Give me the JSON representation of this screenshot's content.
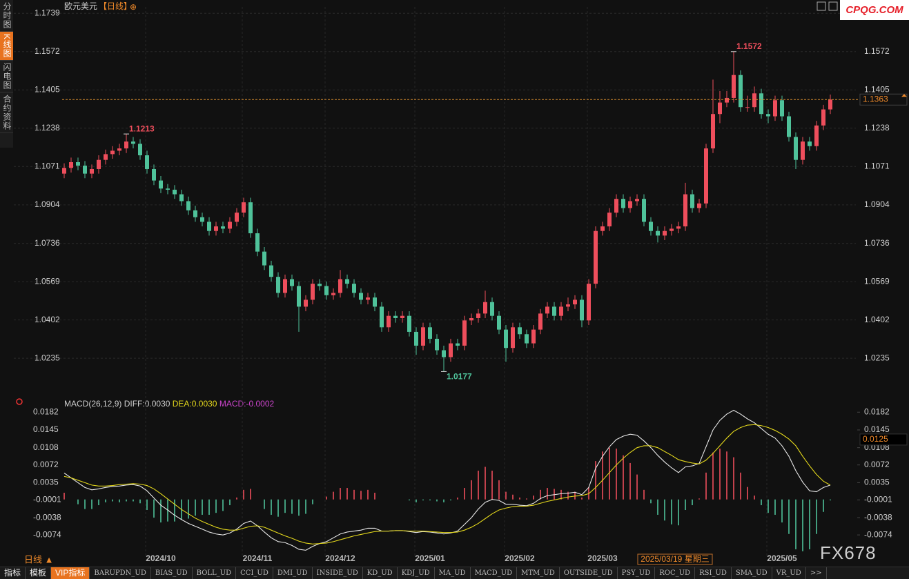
{
  "header": {
    "symbol": "欧元美元",
    "period": "【日线】",
    "icon": "⊕"
  },
  "sidebar": [
    "分时图",
    "K线图",
    "闪电图",
    "合约资料"
  ],
  "logo": "CPQG.COM",
  "watermark": "FX678",
  "period_button": "日线 ▲",
  "crosshair_date": "2025/03/19 星期三",
  "toolbar": [
    "指标",
    "模板",
    "VIP指标",
    "BARUPDN_UD",
    "BIAS_UD",
    "BOLL_UD",
    "CCI_UD",
    "DMI_UD",
    "INSIDE_UD",
    "KD_UD",
    "KDJ_UD",
    "MA_UD",
    "MACD_UD",
    "MTM_UD",
    "OUTSIDE_UD",
    "PSY_UD",
    "ROC_UD",
    "RSI_UD",
    "SMA_UD",
    "VR_UD",
    ">>"
  ],
  "chart_data": [
    {
      "type": "candlestick",
      "up_color": "#ee4e5c",
      "down_color": "#4fc29a",
      "grid": true,
      "ylim": [
        1.0082,
        1.1767
      ],
      "yticks": [
        1.0235,
        1.0402,
        1.0569,
        1.0736,
        1.0904,
        1.1071,
        1.1238,
        1.1405,
        1.1572,
        1.1739
      ],
      "xticks": [
        {
          "value": 14,
          "label": "2024/10"
        },
        {
          "value": 28,
          "label": "2024/11"
        },
        {
          "value": 40,
          "label": "2024/12"
        },
        {
          "value": 53,
          "label": "2025/01"
        },
        {
          "value": 66,
          "label": "2025/02"
        },
        {
          "value": 78,
          "label": "2025/03"
        },
        {
          "value": 104,
          "label": "2025/05"
        }
      ],
      "annotations": [
        1.1213,
        1.1572,
        1.0177
      ],
      "current_price": 1.1363,
      "open": [
        1.104,
        1.1065,
        1.109,
        1.1075,
        1.104,
        1.106,
        1.11,
        1.1125,
        1.114,
        1.115,
        1.118,
        1.117,
        1.112,
        1.106,
        1.101,
        1.0975,
        1.097,
        1.095,
        1.092,
        1.088,
        1.085,
        1.083,
        1.079,
        1.081,
        1.08,
        1.083,
        1.087,
        1.0915,
        1.078,
        1.07,
        1.064,
        1.059,
        1.052,
        1.058,
        1.055,
        1.046,
        1.049,
        1.056,
        1.055,
        1.051,
        1.052,
        1.058,
        1.056,
        1.052,
        1.049,
        1.05,
        1.046,
        1.037,
        1.042,
        1.041,
        1.042,
        1.035,
        1.029,
        1.037,
        1.032,
        1.027,
        1.024,
        1.03,
        1.029,
        1.04,
        1.041,
        1.043,
        1.048,
        1.042,
        1.036,
        1.028,
        1.037,
        1.034,
        1.03,
        1.036,
        1.043,
        1.046,
        1.042,
        1.046,
        1.047,
        1.049,
        1.04,
        1.056,
        1.079,
        1.081,
        1.087,
        1.093,
        1.089,
        1.092,
        1.093,
        1.083,
        1.079,
        1.077,
        1.079,
        1.08,
        1.081,
        1.095,
        1.089,
        1.091,
        1.115,
        1.13,
        1.135,
        1.137,
        1.147,
        1.133,
        1.133,
        1.139,
        1.13,
        1.129,
        1.136,
        1.129,
        1.12,
        1.11,
        1.118,
        1.116,
        1.125,
        1.132
      ],
      "high": [
        1.1085,
        1.111,
        1.111,
        1.1095,
        1.108,
        1.112,
        1.1145,
        1.116,
        1.117,
        1.1213,
        1.12,
        1.119,
        1.114,
        1.108,
        1.103,
        1.0995,
        1.099,
        1.097,
        1.094,
        1.09,
        1.087,
        1.085,
        1.083,
        1.083,
        1.085,
        1.089,
        1.0935,
        1.0935,
        1.08,
        1.072,
        1.066,
        1.061,
        1.06,
        1.06,
        1.057,
        1.051,
        1.058,
        1.058,
        1.057,
        1.054,
        1.062,
        1.06,
        1.058,
        1.054,
        1.052,
        1.052,
        1.048,
        1.044,
        1.044,
        1.044,
        1.044,
        1.037,
        1.039,
        1.039,
        1.034,
        1.029,
        1.032,
        1.032,
        1.042,
        1.043,
        1.045,
        1.053,
        1.05,
        1.044,
        1.038,
        1.039,
        1.039,
        1.036,
        1.038,
        1.045,
        1.048,
        1.048,
        1.048,
        1.05,
        1.051,
        1.051,
        1.058,
        1.081,
        1.083,
        1.089,
        1.095,
        1.095,
        1.094,
        1.095,
        1.095,
        1.085,
        1.081,
        1.081,
        1.082,
        1.083,
        1.1,
        1.097,
        1.093,
        1.117,
        1.145,
        1.14,
        1.14,
        1.1572,
        1.149,
        1.138,
        1.142,
        1.141,
        1.132,
        1.138,
        1.138,
        1.131,
        1.122,
        1.12,
        1.12,
        1.127,
        1.134,
        1.1385
      ],
      "low": [
        1.102,
        1.1045,
        1.1055,
        1.102,
        1.102,
        1.104,
        1.108,
        1.1105,
        1.112,
        1.113,
        1.115,
        1.11,
        1.104,
        1.099,
        1.0955,
        1.095,
        1.093,
        1.09,
        1.086,
        1.083,
        1.081,
        1.077,
        1.077,
        1.078,
        1.078,
        1.081,
        1.085,
        1.076,
        1.068,
        1.062,
        1.057,
        1.05,
        1.05,
        1.053,
        1.035,
        1.044,
        1.047,
        1.053,
        1.049,
        1.049,
        1.05,
        1.054,
        1.05,
        1.047,
        1.047,
        1.044,
        1.035,
        1.035,
        1.039,
        1.039,
        1.033,
        1.025,
        1.027,
        1.03,
        1.025,
        1.0177,
        1.022,
        1.027,
        1.027,
        1.038,
        1.039,
        1.041,
        1.04,
        1.034,
        1.022,
        1.026,
        1.032,
        1.028,
        1.028,
        1.034,
        1.041,
        1.04,
        1.04,
        1.044,
        1.045,
        1.037,
        1.038,
        1.054,
        1.077,
        1.079,
        1.085,
        1.087,
        1.087,
        1.09,
        1.081,
        1.077,
        1.074,
        1.075,
        1.077,
        1.078,
        1.079,
        1.087,
        1.087,
        1.089,
        1.113,
        1.126,
        1.133,
        1.135,
        1.131,
        1.131,
        1.131,
        1.128,
        1.126,
        1.127,
        1.127,
        1.118,
        1.106,
        1.108,
        1.114,
        1.114,
        1.123,
        1.13
      ],
      "close": [
        1.1065,
        1.109,
        1.1075,
        1.104,
        1.106,
        1.11,
        1.1125,
        1.114,
        1.115,
        1.118,
        1.117,
        1.112,
        1.106,
        1.101,
        1.0975,
        1.097,
        1.095,
        1.092,
        1.088,
        1.085,
        1.083,
        1.079,
        1.081,
        1.08,
        1.083,
        1.087,
        1.0915,
        1.078,
        1.07,
        1.064,
        1.059,
        1.052,
        1.058,
        1.055,
        1.046,
        1.049,
        1.056,
        1.055,
        1.051,
        1.052,
        1.058,
        1.056,
        1.052,
        1.049,
        1.05,
        1.046,
        1.037,
        1.042,
        1.041,
        1.042,
        1.035,
        1.029,
        1.037,
        1.032,
        1.027,
        1.024,
        1.03,
        1.029,
        1.04,
        1.041,
        1.043,
        1.048,
        1.042,
        1.036,
        1.028,
        1.037,
        1.034,
        1.03,
        1.036,
        1.043,
        1.046,
        1.042,
        1.046,
        1.047,
        1.049,
        1.04,
        1.056,
        1.079,
        1.081,
        1.087,
        1.093,
        1.089,
        1.092,
        1.093,
        1.083,
        1.079,
        1.077,
        1.079,
        1.08,
        1.081,
        1.095,
        1.089,
        1.091,
        1.115,
        1.13,
        1.135,
        1.137,
        1.147,
        1.133,
        1.133,
        1.139,
        1.13,
        1.129,
        1.136,
        1.129,
        1.12,
        1.11,
        1.118,
        1.116,
        1.125,
        1.132,
        1.1363
      ]
    },
    {
      "type": "macd",
      "title": "MACD(26,12,9)",
      "ylim": [
        -0.0117,
        0.0204
      ],
      "yticks": [
        -0.0074,
        -0.0038,
        -0.0001,
        0.0035,
        0.0072,
        0.0108,
        0.0145,
        0.0182
      ],
      "crosshair_value": 0.0125,
      "series": [
        {
          "label": "DIFF:0.0030",
          "color": "#e8e8e8",
          "values": [
            0.0055,
            0.0045,
            0.0035,
            0.0025,
            0.002,
            0.0022,
            0.0025,
            0.0027,
            0.0028,
            0.003,
            0.0031,
            0.0028,
            0.0018,
            0.0003,
            -0.0012,
            -0.0022,
            -0.0033,
            -0.0042,
            -0.005,
            -0.0056,
            -0.0062,
            -0.0068,
            -0.0072,
            -0.0074,
            -0.007,
            -0.0062,
            -0.005,
            -0.0045,
            -0.0055,
            -0.0068,
            -0.008,
            -0.0088,
            -0.009,
            -0.0096,
            -0.0104,
            -0.0106,
            -0.0098,
            -0.0092,
            -0.0088,
            -0.008,
            -0.0072,
            -0.0068,
            -0.0066,
            -0.0064,
            -0.006,
            -0.006,
            -0.0066,
            -0.0066,
            -0.0065,
            -0.0065,
            -0.0067,
            -0.0069,
            -0.0067,
            -0.0068,
            -0.007,
            -0.0072,
            -0.007,
            -0.0066,
            -0.0052,
            -0.0038,
            -0.002,
            -0.0006,
            0.0,
            -0.0002,
            -0.001,
            -0.001,
            -0.0012,
            -0.0013,
            -0.0008,
            0.0002,
            0.0008,
            0.001,
            0.0012,
            0.0013,
            0.0015,
            0.001,
            0.0025,
            0.0065,
            0.009,
            0.011,
            0.0125,
            0.0132,
            0.0136,
            0.0134,
            0.0122,
            0.0108,
            0.0092,
            0.0078,
            0.0066,
            0.0056,
            0.0068,
            0.007,
            0.0075,
            0.011,
            0.0145,
            0.0165,
            0.0178,
            0.0186,
            0.0178,
            0.0168,
            0.016,
            0.0148,
            0.0136,
            0.0128,
            0.0112,
            0.009,
            0.006,
            0.0036,
            0.0018,
            0.0016,
            0.0025,
            0.003
          ]
        },
        {
          "label": "DEA:0.0030",
          "color": "#e4d81c",
          "values": [
            0.0048,
            0.0045,
            0.004,
            0.0035,
            0.003,
            0.0028,
            0.0028,
            0.0029,
            0.0031,
            0.0032,
            0.0033,
            0.0032,
            0.0029,
            0.0022,
            0.0012,
            0.0001,
            -0.001,
            -0.0021,
            -0.003,
            -0.0039,
            -0.0046,
            -0.0052,
            -0.0058,
            -0.0062,
            -0.0064,
            -0.0064,
            -0.006,
            -0.0056,
            -0.0055,
            -0.0058,
            -0.0064,
            -0.007,
            -0.0076,
            -0.0081,
            -0.0087,
            -0.0091,
            -0.0093,
            -0.0092,
            -0.0091,
            -0.0088,
            -0.0084,
            -0.008,
            -0.0076,
            -0.0073,
            -0.007,
            -0.0067,
            -0.0066,
            -0.0066,
            -0.0065,
            -0.0065,
            -0.0066,
            -0.0066,
            -0.0066,
            -0.0067,
            -0.0068,
            -0.0069,
            -0.0069,
            -0.0068,
            -0.0064,
            -0.0058,
            -0.005,
            -0.004,
            -0.003,
            -0.0022,
            -0.0018,
            -0.0015,
            -0.0014,
            -0.0014,
            -0.0012,
            -0.0008,
            -0.0004,
            -0.0001,
            0.0002,
            0.0005,
            0.0007,
            0.0008,
            0.0012,
            0.0025,
            0.004,
            0.0056,
            0.0072,
            0.0086,
            0.0098,
            0.0108,
            0.0112,
            0.0112,
            0.0108,
            0.01,
            0.0092,
            0.0083,
            0.0079,
            0.0076,
            0.0074,
            0.0082,
            0.0096,
            0.0112,
            0.0128,
            0.0142,
            0.015,
            0.0155,
            0.0156,
            0.0154,
            0.015,
            0.0144,
            0.0136,
            0.0126,
            0.0112,
            0.009,
            0.007,
            0.0052,
            0.0038,
            0.003
          ]
        }
      ],
      "histogram_label": "MACD:-0.0002",
      "histogram_label_color": "#cc44cc",
      "up_color": "#ee4e5c",
      "down_color": "#4fc29a",
      "histogram": [
        0.0014,
        0.0,
        -0.001,
        -0.002,
        -0.002,
        -0.0012,
        -0.0006,
        -0.0004,
        -0.0006,
        -0.0004,
        -0.0004,
        -0.0008,
        -0.0022,
        -0.0038,
        -0.0048,
        -0.0046,
        -0.0046,
        -0.0042,
        -0.004,
        -0.0034,
        -0.0032,
        -0.0032,
        -0.0028,
        -0.0024,
        -0.0012,
        0.0004,
        0.002,
        0.0022,
        0.0,
        -0.002,
        -0.0032,
        -0.0036,
        -0.0028,
        -0.003,
        -0.0034,
        -0.003,
        -0.001,
        0.0,
        0.0006,
        0.0016,
        0.0024,
        0.0024,
        0.002,
        0.0018,
        0.002,
        0.0014,
        0.0,
        0.0,
        0.0,
        0.0,
        -0.0002,
        -0.0006,
        -0.0002,
        -0.0002,
        -0.0004,
        -0.0006,
        -0.0002,
        0.0004,
        0.0024,
        0.004,
        0.006,
        0.0068,
        0.006,
        0.004,
        0.0016,
        0.001,
        0.0004,
        0.0002,
        0.0008,
        0.002,
        0.0024,
        0.0022,
        0.002,
        0.0016,
        0.0016,
        0.0004,
        0.0026,
        0.008,
        0.01,
        0.0108,
        0.0106,
        0.0092,
        0.0076,
        0.0052,
        0.002,
        -0.0008,
        -0.0032,
        -0.0044,
        -0.0052,
        -0.0054,
        -0.0022,
        -0.0012,
        0.0002,
        0.0056,
        0.0098,
        0.0106,
        0.01,
        0.0088,
        0.0056,
        0.0026,
        0.0008,
        -0.0012,
        -0.0028,
        -0.0032,
        -0.0048,
        -0.0072,
        -0.0104,
        -0.0108,
        -0.0104,
        -0.0072,
        -0.0026,
        -0.0002
      ]
    }
  ]
}
